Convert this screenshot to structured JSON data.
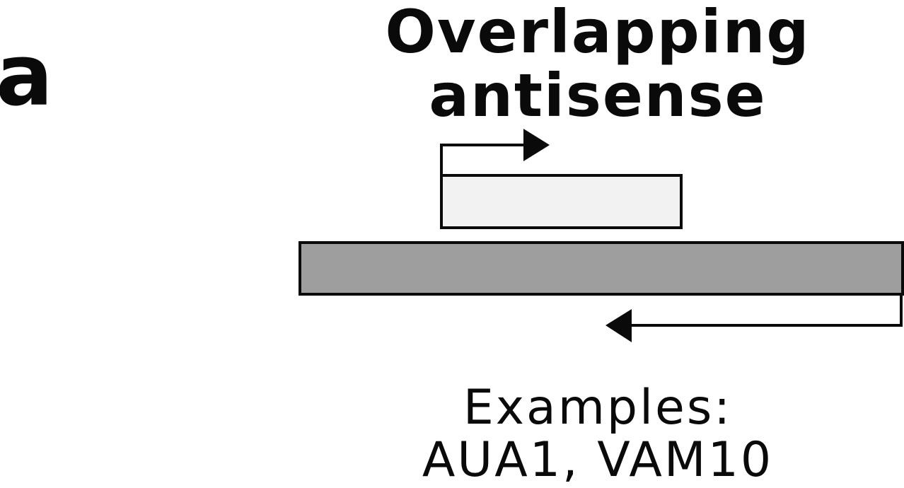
{
  "panel_label": "a",
  "title": {
    "line1": "Overlapping",
    "line2": "antisense"
  },
  "colors": {
    "sense_transcript_fill": "#f2f2f2",
    "antisense_transcript_fill": "#9e9e9e",
    "stroke": "#0a0a0a"
  },
  "examples": {
    "heading": "Examples:",
    "genes": "AUA1, VAM10"
  }
}
